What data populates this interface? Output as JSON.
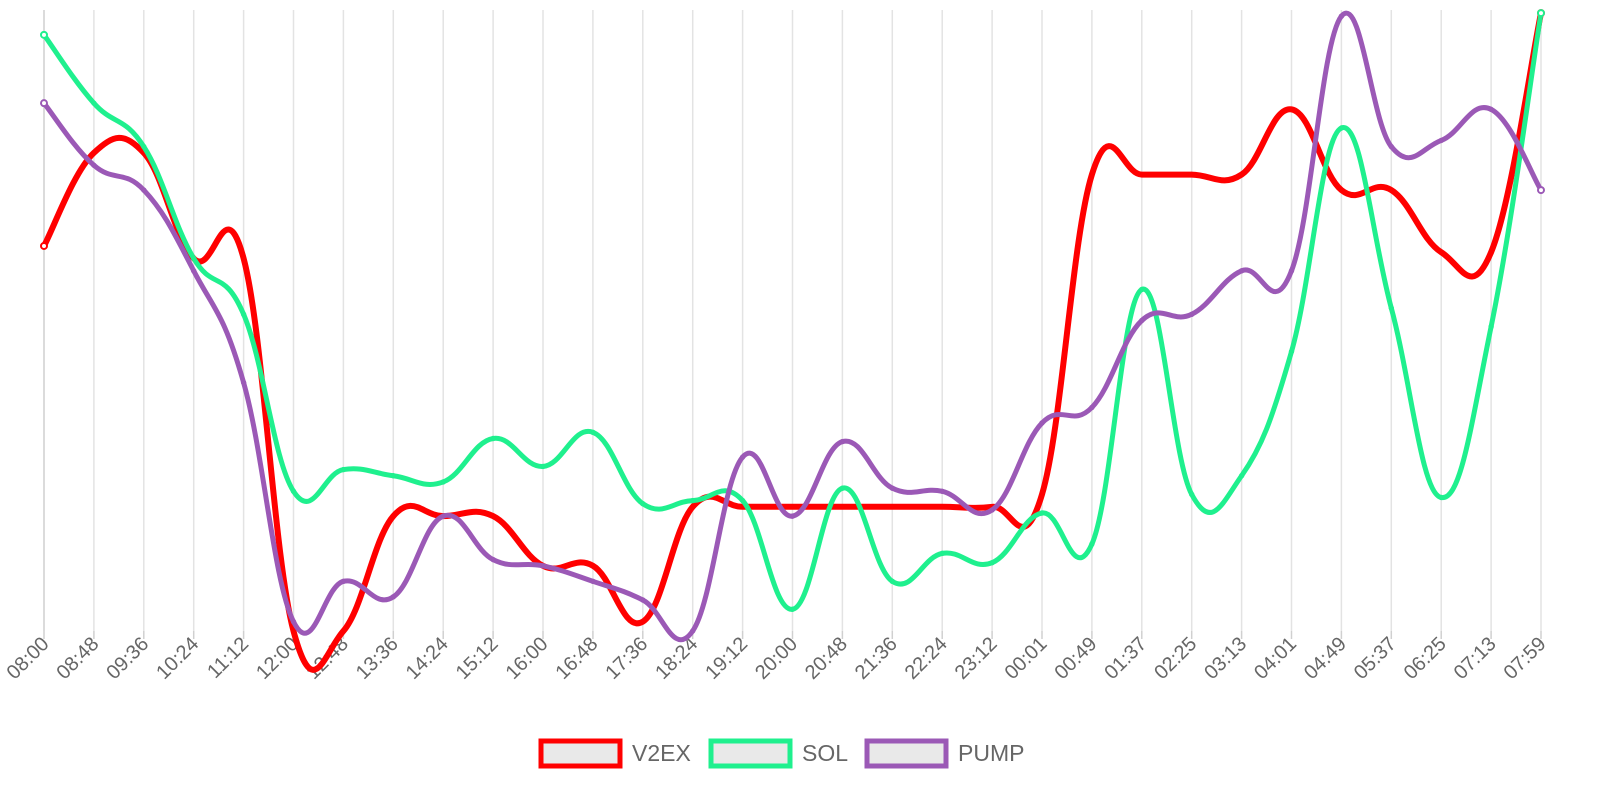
{
  "chart_data": {
    "type": "line",
    "title": "",
    "xlabel": "",
    "ylabel": "",
    "y_axis_labels_shown": false,
    "ylim": [
      0,
      100
    ],
    "grid": "vertical",
    "legend_position": "bottom",
    "x": [
      "08:00",
      "08:48",
      "09:36",
      "10:24",
      "11:12",
      "12:00",
      "12:48",
      "13:36",
      "14:24",
      "15:12",
      "16:00",
      "16:48",
      "17:36",
      "18:24",
      "19:12",
      "20:00",
      "20:48",
      "21:36",
      "22:24",
      "23:12",
      "00:01",
      "00:49",
      "01:37",
      "02:25",
      "03:13",
      "04:01",
      "04:49",
      "05:37",
      "06:25",
      "07:13",
      "07:59"
    ],
    "series": [
      {
        "name": "V2EX",
        "color": "#ff0000",
        "line_width": 6,
        "values": [
          62,
          77,
          77,
          60,
          60,
          0,
          0,
          18.5,
          18.5,
          18.5,
          10.5,
          10.5,
          1.5,
          20,
          20,
          20,
          20,
          20,
          20,
          20,
          22,
          73.5,
          73.5,
          73.5,
          73.5,
          84,
          71,
          71,
          61,
          61,
          99.5
        ]
      },
      {
        "name": "SOL",
        "color": "#1ff08e",
        "line_width": 5,
        "values": [
          96,
          85,
          78,
          60,
          51,
          22.5,
          26,
          25,
          24,
          31,
          26.5,
          32,
          20.5,
          21,
          21,
          3.5,
          23,
          8,
          12.5,
          11,
          19,
          14,
          55,
          22,
          25,
          45,
          81,
          52,
          21.5,
          49,
          99.5
        ]
      },
      {
        "name": "PUMP",
        "color": "#9b59b6",
        "line_width": 5,
        "values": [
          85,
          75,
          71,
          58,
          40,
          1.5,
          8,
          5.5,
          18.5,
          11.5,
          10.5,
          8,
          5,
          0,
          28,
          18.5,
          30.5,
          23,
          22.5,
          19.5,
          33.5,
          36,
          50,
          51,
          58,
          58,
          99,
          78,
          79,
          84,
          71
        ]
      }
    ]
  },
  "legend": {
    "items": [
      "V2EX",
      "SOL",
      "PUMP"
    ]
  }
}
